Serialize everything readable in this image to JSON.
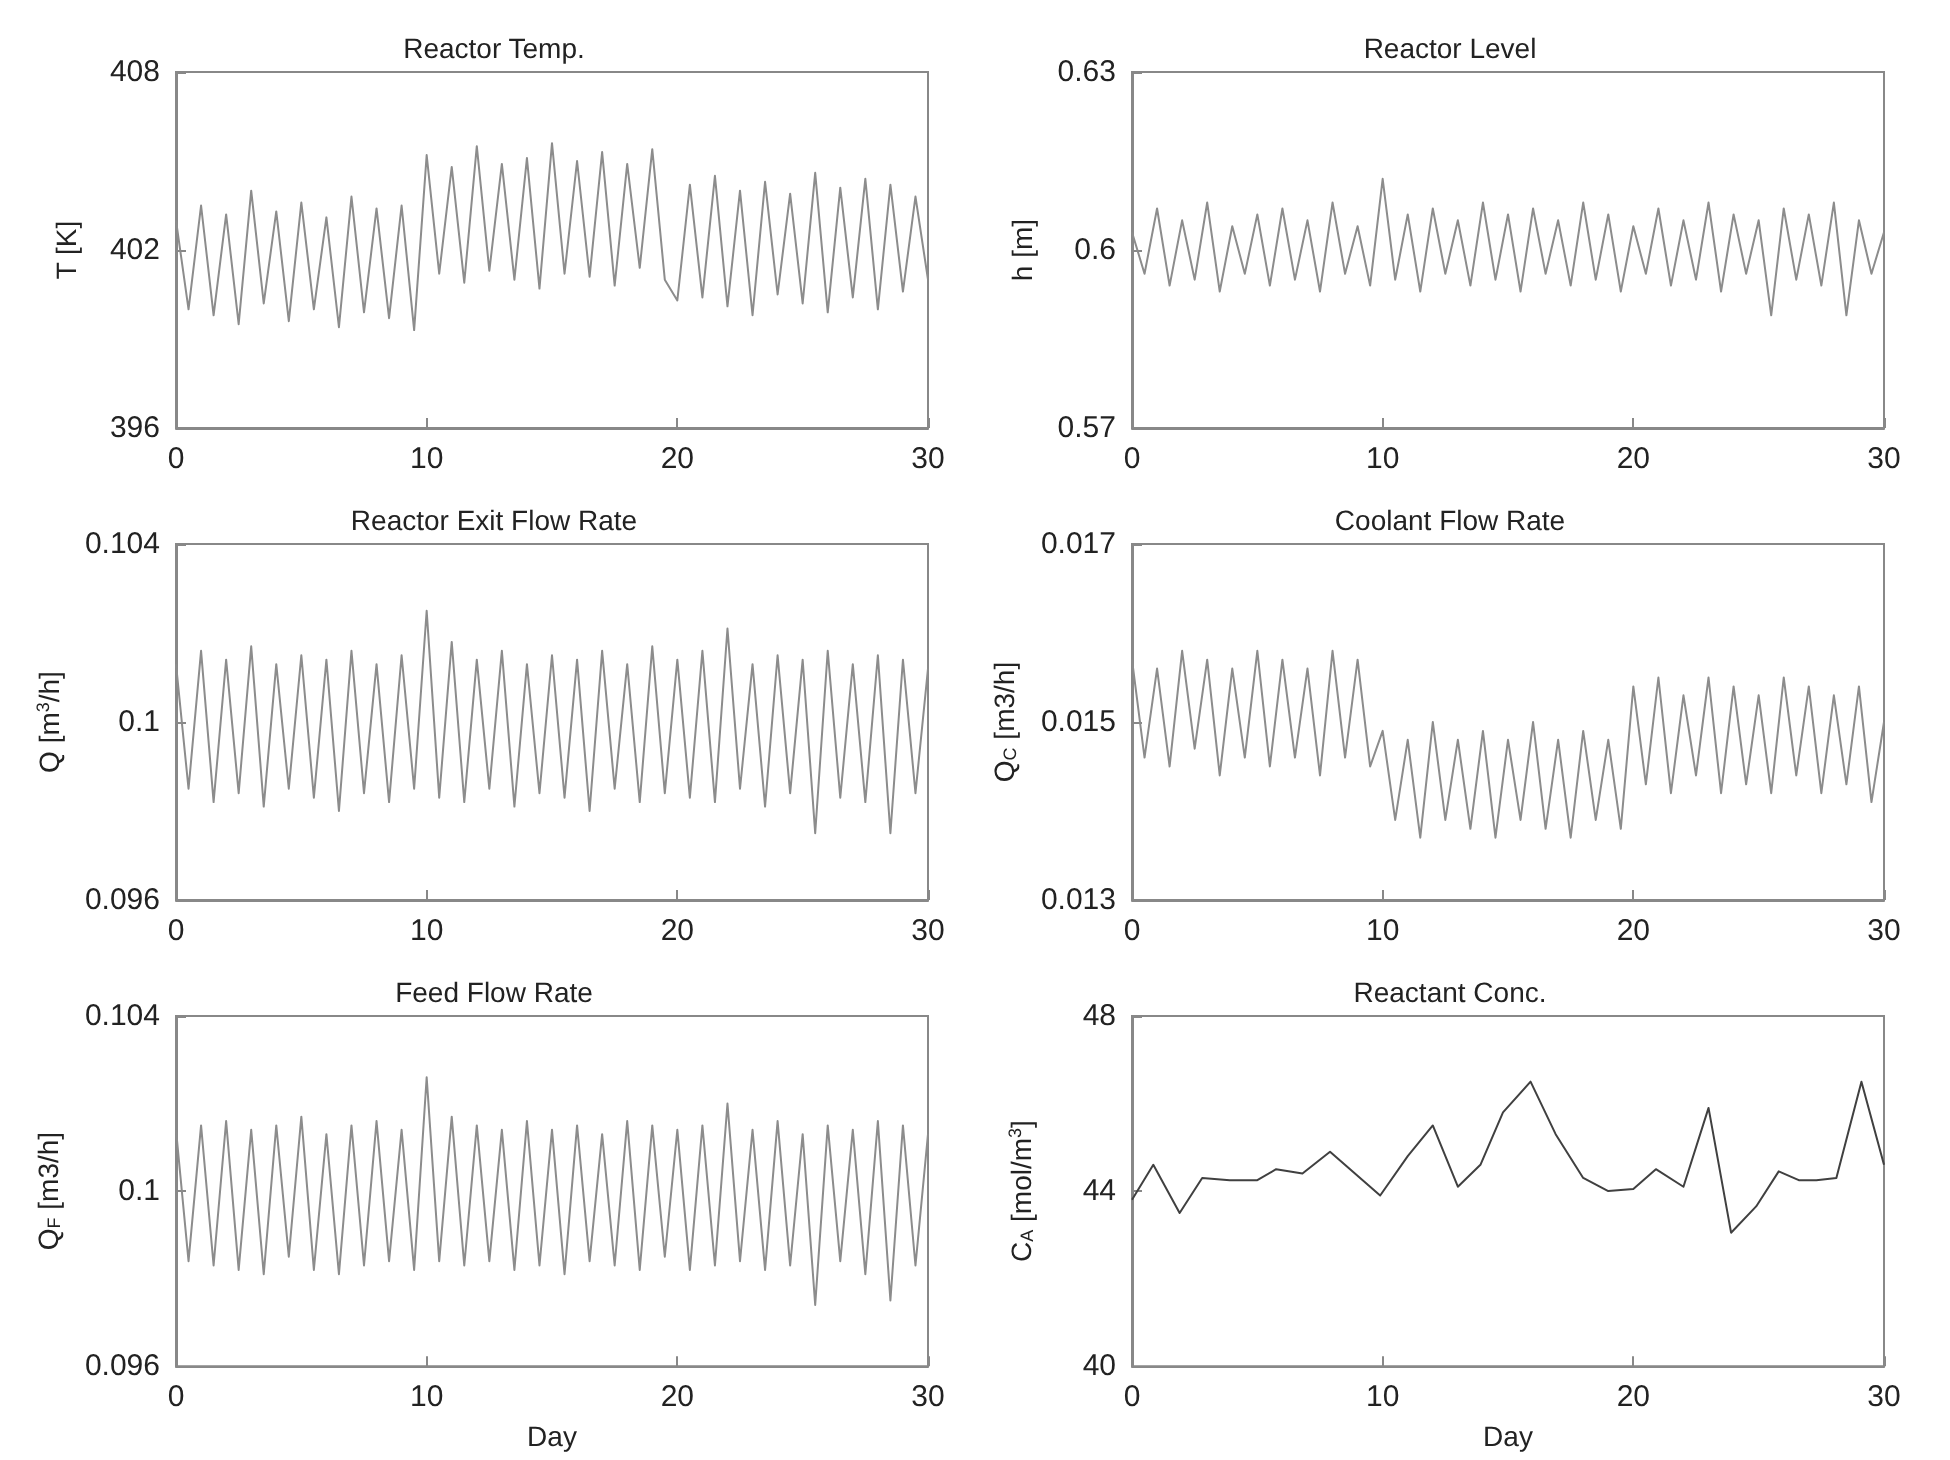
{
  "chart_data": [
    {
      "type": "line",
      "title": "Reactor Temp.",
      "ylabel": "T [K]",
      "color": "#8c8c8c",
      "xlim": [
        0,
        30
      ],
      "xticks": [
        0,
        10,
        20,
        30
      ],
      "ylim": [
        396,
        408
      ],
      "yticks": [
        396,
        402,
        408
      ],
      "x": [
        0,
        0.5,
        1,
        1.5,
        2,
        2.5,
        3,
        3.5,
        4,
        4.5,
        5,
        5.5,
        6,
        6.5,
        7,
        7.5,
        8,
        8.5,
        9,
        9.5,
        10,
        10.5,
        11,
        11.5,
        12,
        12.5,
        13,
        13.5,
        14,
        14.5,
        15,
        15.5,
        16,
        16.5,
        17,
        17.5,
        18,
        18.5,
        19,
        19.5,
        20,
        20.5,
        21,
        21.5,
        22,
        22.5,
        23,
        23.5,
        24,
        24.5,
        25,
        25.5,
        26,
        26.5,
        27,
        27.5,
        28,
        28.5,
        29,
        29.5,
        30
      ],
      "values": [
        403,
        400,
        403.5,
        399.8,
        403.2,
        399.5,
        404,
        400.2,
        403.3,
        399.6,
        403.6,
        400,
        403.1,
        399.4,
        403.8,
        399.9,
        403.4,
        399.7,
        403.5,
        399.3,
        405.2,
        401.2,
        404.8,
        400.9,
        405.5,
        401.3,
        404.9,
        401,
        405.1,
        400.7,
        405.6,
        401.2,
        405,
        401.1,
        405.3,
        400.8,
        404.9,
        401.4,
        405.4,
        401,
        400.3,
        404.2,
        400.4,
        404.5,
        400.1,
        404,
        399.8,
        404.3,
        400.5,
        403.9,
        400.2,
        404.6,
        399.9,
        404.1,
        400.4,
        404.4,
        400,
        404.2,
        400.6,
        403.8,
        401
      ]
    },
    {
      "type": "line",
      "title": "Reactor Level",
      "ylabel": "h [m]",
      "color": "#8c8c8c",
      "xlim": [
        0,
        30
      ],
      "xticks": [
        0,
        10,
        20,
        30
      ],
      "ylim": [
        0.57,
        0.63
      ],
      "yticks": [
        0.57,
        0.6,
        0.63
      ],
      "x": [
        0,
        0.5,
        1,
        1.5,
        2,
        2.5,
        3,
        3.5,
        4,
        4.5,
        5,
        5.5,
        6,
        6.5,
        7,
        7.5,
        8,
        8.5,
        9,
        9.5,
        10,
        10.5,
        11,
        11.5,
        12,
        12.5,
        13,
        13.5,
        14,
        14.5,
        15,
        15.5,
        16,
        16.5,
        17,
        17.5,
        18,
        18.5,
        19,
        19.5,
        20,
        20.5,
        21,
        21.5,
        22,
        22.5,
        23,
        23.5,
        24,
        24.5,
        25,
        25.5,
        26,
        26.5,
        27,
        27.5,
        28,
        28.5,
        29,
        29.5,
        30
      ],
      "values": [
        0.603,
        0.596,
        0.607,
        0.594,
        0.605,
        0.595,
        0.608,
        0.593,
        0.604,
        0.596,
        0.606,
        0.594,
        0.607,
        0.595,
        0.605,
        0.593,
        0.608,
        0.596,
        0.604,
        0.594,
        0.612,
        0.595,
        0.606,
        0.593,
        0.607,
        0.596,
        0.605,
        0.594,
        0.608,
        0.595,
        0.606,
        0.593,
        0.607,
        0.596,
        0.605,
        0.594,
        0.608,
        0.595,
        0.606,
        0.593,
        0.604,
        0.596,
        0.607,
        0.594,
        0.605,
        0.595,
        0.608,
        0.593,
        0.606,
        0.596,
        0.605,
        0.589,
        0.607,
        0.595,
        0.606,
        0.594,
        0.608,
        0.589,
        0.605,
        0.596,
        0.603
      ]
    },
    {
      "type": "line",
      "title": "Reactor Exit Flow Rate",
      "ylabel": "Q [m$^{3}$/h]",
      "color": "#8c8c8c",
      "xlim": [
        0,
        30
      ],
      "xticks": [
        0,
        10,
        20,
        30
      ],
      "ylim": [
        0.096,
        0.104
      ],
      "yticks": [
        0.096,
        0.1,
        0.104
      ],
      "x": [
        0,
        0.5,
        1,
        1.5,
        2,
        2.5,
        3,
        3.5,
        4,
        4.5,
        5,
        5.5,
        6,
        6.5,
        7,
        7.5,
        8,
        8.5,
        9,
        9.5,
        10,
        10.5,
        11,
        11.5,
        12,
        12.5,
        13,
        13.5,
        14,
        14.5,
        15,
        15.5,
        16,
        16.5,
        17,
        17.5,
        18,
        18.5,
        19,
        19.5,
        20,
        20.5,
        21,
        21.5,
        22,
        22.5,
        23,
        23.5,
        24,
        24.5,
        25,
        25.5,
        26,
        26.5,
        27,
        27.5,
        28,
        28.5,
        29,
        29.5,
        30
      ],
      "values": [
        0.1013,
        0.0985,
        0.1016,
        0.0982,
        0.1014,
        0.0984,
        0.1017,
        0.0981,
        0.1013,
        0.0985,
        0.1015,
        0.0983,
        0.1014,
        0.098,
        0.1016,
        0.0984,
        0.1013,
        0.0982,
        0.1015,
        0.0985,
        0.1025,
        0.0983,
        0.1018,
        0.0982,
        0.1014,
        0.0985,
        0.1016,
        0.0981,
        0.1013,
        0.0984,
        0.1015,
        0.0983,
        0.1014,
        0.098,
        0.1016,
        0.0985,
        0.1013,
        0.0982,
        0.1017,
        0.0984,
        0.1014,
        0.0983,
        0.1016,
        0.0982,
        0.1021,
        0.0985,
        0.1013,
        0.0981,
        0.1015,
        0.0984,
        0.1014,
        0.0975,
        0.1016,
        0.0983,
        0.1013,
        0.0982,
        0.1015,
        0.0975,
        0.1014,
        0.0984,
        0.1012
      ]
    },
    {
      "type": "line",
      "title": "Coolant Flow Rate",
      "ylabel": "Q$_{C}$ [m3/h]",
      "color": "#8c8c8c",
      "xlim": [
        0,
        30
      ],
      "xticks": [
        0,
        10,
        20,
        30
      ],
      "ylim": [
        0.013,
        0.017
      ],
      "yticks": [
        0.013,
        0.015,
        0.017
      ],
      "x": [
        0,
        0.5,
        1,
        1.5,
        2,
        2.5,
        3,
        3.5,
        4,
        4.5,
        5,
        5.5,
        6,
        6.5,
        7,
        7.5,
        8,
        8.5,
        9,
        9.5,
        10,
        10.5,
        11,
        11.5,
        12,
        12.5,
        13,
        13.5,
        14,
        14.5,
        15,
        15.5,
        16,
        16.5,
        17,
        17.5,
        18,
        18.5,
        19,
        19.5,
        20,
        20.5,
        21,
        21.5,
        22,
        22.5,
        23,
        23.5,
        24,
        24.5,
        25,
        25.5,
        26,
        26.5,
        27,
        27.5,
        28,
        28.5,
        29,
        29.5,
        30
      ],
      "values": [
        0.0157,
        0.0146,
        0.0156,
        0.0145,
        0.0158,
        0.0147,
        0.0157,
        0.0144,
        0.0156,
        0.0146,
        0.0158,
        0.0145,
        0.0157,
        0.0146,
        0.0156,
        0.0144,
        0.0158,
        0.0146,
        0.0157,
        0.0145,
        0.0149,
        0.0139,
        0.0148,
        0.0137,
        0.015,
        0.0139,
        0.0148,
        0.0138,
        0.0149,
        0.0137,
        0.0148,
        0.0139,
        0.015,
        0.0138,
        0.0148,
        0.0137,
        0.0149,
        0.0139,
        0.0148,
        0.0138,
        0.0154,
        0.0143,
        0.0155,
        0.0142,
        0.0153,
        0.0144,
        0.0155,
        0.0142,
        0.0154,
        0.0143,
        0.0153,
        0.0142,
        0.0155,
        0.0144,
        0.0154,
        0.0142,
        0.0153,
        0.0143,
        0.0154,
        0.0141,
        0.015
      ]
    },
    {
      "type": "line",
      "title": "Feed Flow Rate",
      "xlabel": "Day",
      "ylabel": "Q$_{F}$ [m3/h]",
      "color": "#8c8c8c",
      "xlim": [
        0,
        30
      ],
      "xticks": [
        0,
        10,
        20,
        30
      ],
      "ylim": [
        0.096,
        0.104
      ],
      "yticks": [
        0.096,
        0.1,
        0.104
      ],
      "x": [
        0,
        0.5,
        1,
        1.5,
        2,
        2.5,
        3,
        3.5,
        4,
        4.5,
        5,
        5.5,
        6,
        6.5,
        7,
        7.5,
        8,
        8.5,
        9,
        9.5,
        10,
        10.5,
        11,
        11.5,
        12,
        12.5,
        13,
        13.5,
        14,
        14.5,
        15,
        15.5,
        16,
        16.5,
        17,
        17.5,
        18,
        18.5,
        19,
        19.5,
        20,
        20.5,
        21,
        21.5,
        22,
        22.5,
        23,
        23.5,
        24,
        24.5,
        25,
        25.5,
        26,
        26.5,
        27,
        27.5,
        28,
        28.5,
        29,
        29.5,
        30
      ],
      "values": [
        0.1014,
        0.0984,
        0.1015,
        0.0983,
        0.1016,
        0.0982,
        0.1014,
        0.0981,
        0.1015,
        0.0985,
        0.1017,
        0.0982,
        0.1013,
        0.0981,
        0.1015,
        0.0983,
        0.1016,
        0.0984,
        0.1014,
        0.0982,
        0.1026,
        0.0984,
        0.1017,
        0.0983,
        0.1015,
        0.0984,
        0.1014,
        0.0982,
        0.1016,
        0.0983,
        0.1014,
        0.0981,
        0.1015,
        0.0984,
        0.1013,
        0.0983,
        0.1016,
        0.0982,
        0.1015,
        0.0985,
        0.1014,
        0.0982,
        0.1015,
        0.0983,
        0.102,
        0.0984,
        0.1014,
        0.0982,
        0.1016,
        0.0983,
        0.1013,
        0.0974,
        0.1015,
        0.0984,
        0.1014,
        0.0981,
        0.1016,
        0.0975,
        0.1015,
        0.0983,
        0.1013
      ]
    },
    {
      "type": "line",
      "title": "Reactant Conc.",
      "xlabel": "Day",
      "ylabel": "C$_{A}$ [mol/m$^{3}$]",
      "color": "#404040",
      "xlim": [
        0,
        30
      ],
      "xticks": [
        0,
        10,
        20,
        30
      ],
      "ylim": [
        40,
        48
      ],
      "yticks": [
        40,
        44,
        48
      ],
      "x": [
        0,
        0.85,
        1.9,
        2.8,
        3.9,
        5,
        5.75,
        6.8,
        7.9,
        9.9,
        11,
        12,
        13,
        13.9,
        14.8,
        15.9,
        16.9,
        18,
        19,
        20,
        20.9,
        22,
        23,
        23.9,
        24.9,
        25.8,
        26.6,
        27.3,
        28.1,
        29.1,
        30
      ],
      "values": [
        43.8,
        44.6,
        43.5,
        44.3,
        44.25,
        44.25,
        44.5,
        44.4,
        44.9,
        43.9,
        44.8,
        45.5,
        44.1,
        44.6,
        45.8,
        46.5,
        45.3,
        44.3,
        44,
        44.05,
        44.5,
        44.1,
        45.9,
        43.05,
        43.65,
        44.45,
        44.25,
        44.25,
        44.3,
        46.5,
        44.6
      ]
    }
  ]
}
